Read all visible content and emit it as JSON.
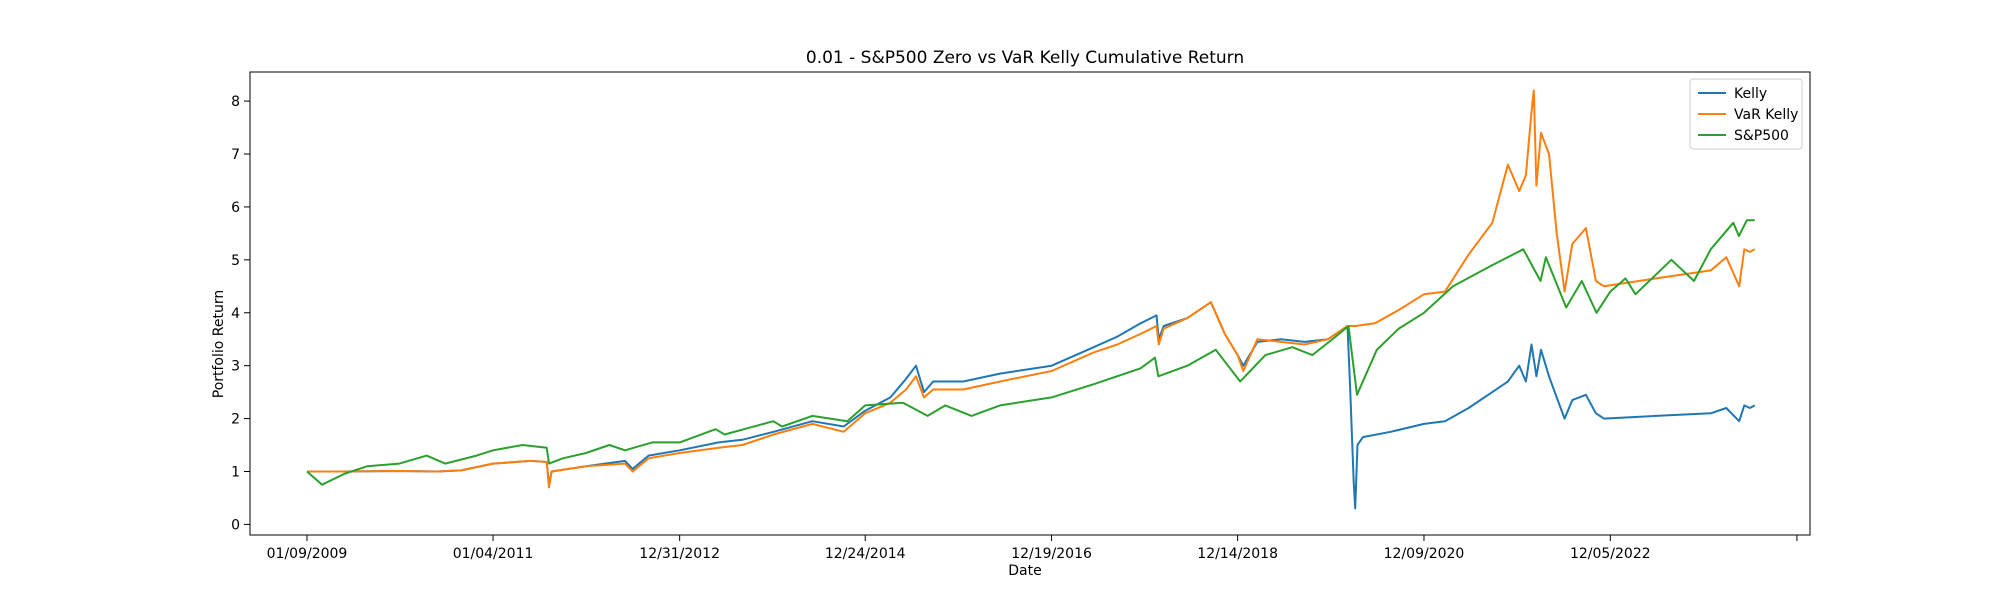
{
  "chart_data": {
    "type": "line",
    "title": "0.01 - S&P500 Zero vs VaR Kelly Cumulative Return",
    "xlabel": "Date",
    "ylabel": "Portfolio Return",
    "xlim": [
      "2008-06-01",
      "2025-01-21"
    ],
    "ylim": [
      -0.2,
      8.55
    ],
    "x_ticks": [
      {
        "date": "2009-01-09",
        "label": "01/09/2009"
      },
      {
        "date": "2011-01-04",
        "label": "01/04/2011"
      },
      {
        "date": "2012-12-31",
        "label": "12/31/2012"
      },
      {
        "date": "2014-12-24",
        "label": "12/24/2014"
      },
      {
        "date": "2016-12-19",
        "label": "12/19/2016"
      },
      {
        "date": "2018-12-14",
        "label": "12/14/2018"
      },
      {
        "date": "2020-12-09",
        "label": "12/09/2020"
      },
      {
        "date": "2022-12-05",
        "label": "12/05/2022"
      },
      {
        "date": "2024-12-01",
        "label": ""
      }
    ],
    "y_ticks": [
      0,
      1,
      2,
      3,
      4,
      5,
      6,
      7,
      8
    ],
    "grid": false,
    "legend": {
      "position": "top-right"
    },
    "series": [
      {
        "name": "Kelly",
        "color": "#1f77b4",
        "points": [
          [
            "2009-01-09",
            1.0
          ],
          [
            "2009-06-01",
            1.0
          ],
          [
            "2010-01-04",
            1.01
          ],
          [
            "2010-06-01",
            1.0
          ],
          [
            "2010-09-01",
            1.02
          ],
          [
            "2011-01-04",
            1.15
          ],
          [
            "2011-06-01",
            1.2
          ],
          [
            "2011-08-01",
            1.18
          ],
          [
            "2011-08-10",
            0.75
          ],
          [
            "2011-08-20",
            1.0
          ],
          [
            "2012-01-01",
            1.1
          ],
          [
            "2012-06-01",
            1.2
          ],
          [
            "2012-07-01",
            1.05
          ],
          [
            "2012-09-01",
            1.3
          ],
          [
            "2012-12-31",
            1.4
          ],
          [
            "2013-06-01",
            1.55
          ],
          [
            "2013-09-01",
            1.6
          ],
          [
            "2014-01-01",
            1.75
          ],
          [
            "2014-06-01",
            1.95
          ],
          [
            "2014-10-01",
            1.85
          ],
          [
            "2014-12-24",
            2.15
          ],
          [
            "2015-04-01",
            2.4
          ],
          [
            "2015-06-01",
            2.75
          ],
          [
            "2015-07-10",
            3.0
          ],
          [
            "2015-08-10",
            2.5
          ],
          [
            "2015-09-15",
            2.7
          ],
          [
            "2016-01-10",
            2.7
          ],
          [
            "2016-06-01",
            2.85
          ],
          [
            "2016-12-19",
            3.0
          ],
          [
            "2017-06-01",
            3.35
          ],
          [
            "2017-09-01",
            3.55
          ],
          [
            "2017-12-01",
            3.8
          ],
          [
            "2018-02-01",
            3.95
          ],
          [
            "2018-02-10",
            3.5
          ],
          [
            "2018-03-01",
            3.75
          ],
          [
            "2018-06-01",
            3.9
          ],
          [
            "2018-09-01",
            4.2
          ],
          [
            "2018-10-25",
            3.6
          ],
          [
            "2018-12-14",
            3.2
          ],
          [
            "2019-01-05",
            3.0
          ],
          [
            "2019-03-01",
            3.45
          ],
          [
            "2019-06-01",
            3.5
          ],
          [
            "2019-09-01",
            3.45
          ],
          [
            "2019-12-01",
            3.5
          ],
          [
            "2020-02-15",
            3.75
          ],
          [
            "2020-02-25",
            2.6
          ],
          [
            "2020-03-10",
            0.8
          ],
          [
            "2020-03-16",
            0.3
          ],
          [
            "2020-03-25",
            1.5
          ],
          [
            "2020-04-15",
            1.65
          ],
          [
            "2020-08-01",
            1.75
          ],
          [
            "2020-12-09",
            1.9
          ],
          [
            "2021-03-01",
            1.95
          ],
          [
            "2021-06-01",
            2.2
          ],
          [
            "2021-09-01",
            2.5
          ],
          [
            "2021-11-01",
            2.7
          ],
          [
            "2021-12-15",
            3.0
          ],
          [
            "2022-01-10",
            2.7
          ],
          [
            "2022-02-01",
            3.4
          ],
          [
            "2022-02-20",
            2.8
          ],
          [
            "2022-03-10",
            3.3
          ],
          [
            "2022-04-10",
            2.8
          ],
          [
            "2022-05-10",
            2.4
          ],
          [
            "2022-06-10",
            2.0
          ],
          [
            "2022-07-10",
            2.35
          ],
          [
            "2022-09-01",
            2.45
          ],
          [
            "2022-10-10",
            2.1
          ],
          [
            "2022-11-10",
            2.0
          ],
          [
            "2023-06-01",
            2.05
          ],
          [
            "2024-01-01",
            2.1
          ],
          [
            "2024-03-01",
            2.2
          ],
          [
            "2024-04-20",
            1.95
          ],
          [
            "2024-05-10",
            2.25
          ],
          [
            "2024-06-01",
            2.2
          ],
          [
            "2024-06-20",
            2.25
          ]
        ]
      },
      {
        "name": "VaR Kelly",
        "color": "#ff7f0e",
        "points": [
          [
            "2009-01-09",
            1.0
          ],
          [
            "2009-06-01",
            1.0
          ],
          [
            "2010-01-04",
            1.01
          ],
          [
            "2010-06-01",
            1.0
          ],
          [
            "2010-09-01",
            1.02
          ],
          [
            "2011-01-04",
            1.15
          ],
          [
            "2011-06-01",
            1.2
          ],
          [
            "2011-08-01",
            1.18
          ],
          [
            "2011-08-10",
            0.7
          ],
          [
            "2011-08-20",
            1.0
          ],
          [
            "2012-01-01",
            1.1
          ],
          [
            "2012-06-01",
            1.15
          ],
          [
            "2012-07-01",
            1.0
          ],
          [
            "2012-09-01",
            1.25
          ],
          [
            "2012-12-31",
            1.35
          ],
          [
            "2013-06-01",
            1.45
          ],
          [
            "2013-09-01",
            1.5
          ],
          [
            "2014-01-01",
            1.7
          ],
          [
            "2014-06-01",
            1.9
          ],
          [
            "2014-10-01",
            1.75
          ],
          [
            "2014-12-24",
            2.1
          ],
          [
            "2015-04-01",
            2.3
          ],
          [
            "2015-06-01",
            2.55
          ],
          [
            "2015-07-10",
            2.8
          ],
          [
            "2015-08-10",
            2.4
          ],
          [
            "2015-09-15",
            2.55
          ],
          [
            "2016-01-10",
            2.55
          ],
          [
            "2016-06-01",
            2.7
          ],
          [
            "2016-12-19",
            2.9
          ],
          [
            "2017-06-01",
            3.25
          ],
          [
            "2017-09-01",
            3.4
          ],
          [
            "2017-12-01",
            3.6
          ],
          [
            "2018-02-01",
            3.75
          ],
          [
            "2018-02-10",
            3.4
          ],
          [
            "2018-03-01",
            3.7
          ],
          [
            "2018-06-01",
            3.9
          ],
          [
            "2018-09-01",
            4.2
          ],
          [
            "2018-10-25",
            3.6
          ],
          [
            "2018-12-14",
            3.2
          ],
          [
            "2019-01-05",
            2.9
          ],
          [
            "2019-03-01",
            3.5
          ],
          [
            "2019-06-01",
            3.45
          ],
          [
            "2019-09-01",
            3.4
          ],
          [
            "2019-12-01",
            3.5
          ],
          [
            "2020-02-15",
            3.75
          ],
          [
            "2020-03-16",
            3.75
          ],
          [
            "2020-06-01",
            3.8
          ],
          [
            "2020-09-01",
            4.05
          ],
          [
            "2020-12-09",
            4.35
          ],
          [
            "2021-03-01",
            4.4
          ],
          [
            "2021-06-01",
            5.1
          ],
          [
            "2021-09-01",
            5.7
          ],
          [
            "2021-11-01",
            6.8
          ],
          [
            "2021-12-15",
            6.3
          ],
          [
            "2022-01-10",
            6.6
          ],
          [
            "2022-02-01",
            7.8
          ],
          [
            "2022-02-10",
            8.2
          ],
          [
            "2022-02-20",
            6.4
          ],
          [
            "2022-03-10",
            7.4
          ],
          [
            "2022-04-10",
            7.0
          ],
          [
            "2022-05-10",
            5.5
          ],
          [
            "2022-06-10",
            4.4
          ],
          [
            "2022-07-10",
            5.3
          ],
          [
            "2022-09-01",
            5.6
          ],
          [
            "2022-10-10",
            4.6
          ],
          [
            "2022-11-10",
            4.5
          ],
          [
            "2023-06-01",
            4.65
          ],
          [
            "2024-01-01",
            4.8
          ],
          [
            "2024-03-01",
            5.05
          ],
          [
            "2024-04-20",
            4.5
          ],
          [
            "2024-05-10",
            5.2
          ],
          [
            "2024-06-01",
            5.15
          ],
          [
            "2024-06-20",
            5.2
          ]
        ]
      },
      {
        "name": "S&P500",
        "color": "#2ca02c",
        "points": [
          [
            "2009-01-09",
            1.0
          ],
          [
            "2009-03-09",
            0.75
          ],
          [
            "2009-06-01",
            0.95
          ],
          [
            "2009-09-01",
            1.1
          ],
          [
            "2010-01-04",
            1.15
          ],
          [
            "2010-04-20",
            1.3
          ],
          [
            "2010-07-01",
            1.15
          ],
          [
            "2010-11-01",
            1.3
          ],
          [
            "2011-01-04",
            1.4
          ],
          [
            "2011-04-29",
            1.5
          ],
          [
            "2011-08-01",
            1.45
          ],
          [
            "2011-08-10",
            1.15
          ],
          [
            "2011-10-03",
            1.25
          ],
          [
            "2012-01-01",
            1.35
          ],
          [
            "2012-04-01",
            1.5
          ],
          [
            "2012-06-01",
            1.4
          ],
          [
            "2012-09-15",
            1.55
          ],
          [
            "2012-12-31",
            1.55
          ],
          [
            "2013-05-20",
            1.8
          ],
          [
            "2013-06-24",
            1.7
          ],
          [
            "2013-12-31",
            1.95
          ],
          [
            "2014-02-03",
            1.85
          ],
          [
            "2014-06-01",
            2.05
          ],
          [
            "2014-10-15",
            1.95
          ],
          [
            "2014-12-24",
            2.25
          ],
          [
            "2015-05-20",
            2.3
          ],
          [
            "2015-08-24",
            2.05
          ],
          [
            "2015-11-01",
            2.25
          ],
          [
            "2016-02-11",
            2.05
          ],
          [
            "2016-06-01",
            2.25
          ],
          [
            "2016-12-19",
            2.4
          ],
          [
            "2017-06-01",
            2.65
          ],
          [
            "2017-12-01",
            2.95
          ],
          [
            "2018-01-26",
            3.15
          ],
          [
            "2018-02-08",
            2.8
          ],
          [
            "2018-06-01",
            3.0
          ],
          [
            "2018-09-20",
            3.3
          ],
          [
            "2018-12-24",
            2.7
          ],
          [
            "2019-04-01",
            3.2
          ],
          [
            "2019-07-15",
            3.35
          ],
          [
            "2019-10-01",
            3.2
          ],
          [
            "2019-12-31",
            3.55
          ],
          [
            "2020-02-19",
            3.75
          ],
          [
            "2020-03-23",
            2.45
          ],
          [
            "2020-06-08",
            3.3
          ],
          [
            "2020-09-02",
            3.7
          ],
          [
            "2020-12-09",
            4.0
          ],
          [
            "2021-04-01",
            4.5
          ],
          [
            "2021-09-01",
            4.9
          ],
          [
            "2021-12-31",
            5.2
          ],
          [
            "2022-03-08",
            4.6
          ],
          [
            "2022-03-29",
            5.05
          ],
          [
            "2022-06-16",
            4.1
          ],
          [
            "2022-08-16",
            4.6
          ],
          [
            "2022-10-12",
            4.0
          ],
          [
            "2022-12-05",
            4.4
          ],
          [
            "2023-02-02",
            4.65
          ],
          [
            "2023-03-13",
            4.35
          ],
          [
            "2023-07-31",
            5.0
          ],
          [
            "2023-10-27",
            4.6
          ],
          [
            "2023-12-31",
            5.2
          ],
          [
            "2024-03-28",
            5.7
          ],
          [
            "2024-04-19",
            5.45
          ],
          [
            "2024-05-20",
            5.75
          ],
          [
            "2024-06-20",
            5.75
          ]
        ]
      }
    ]
  }
}
